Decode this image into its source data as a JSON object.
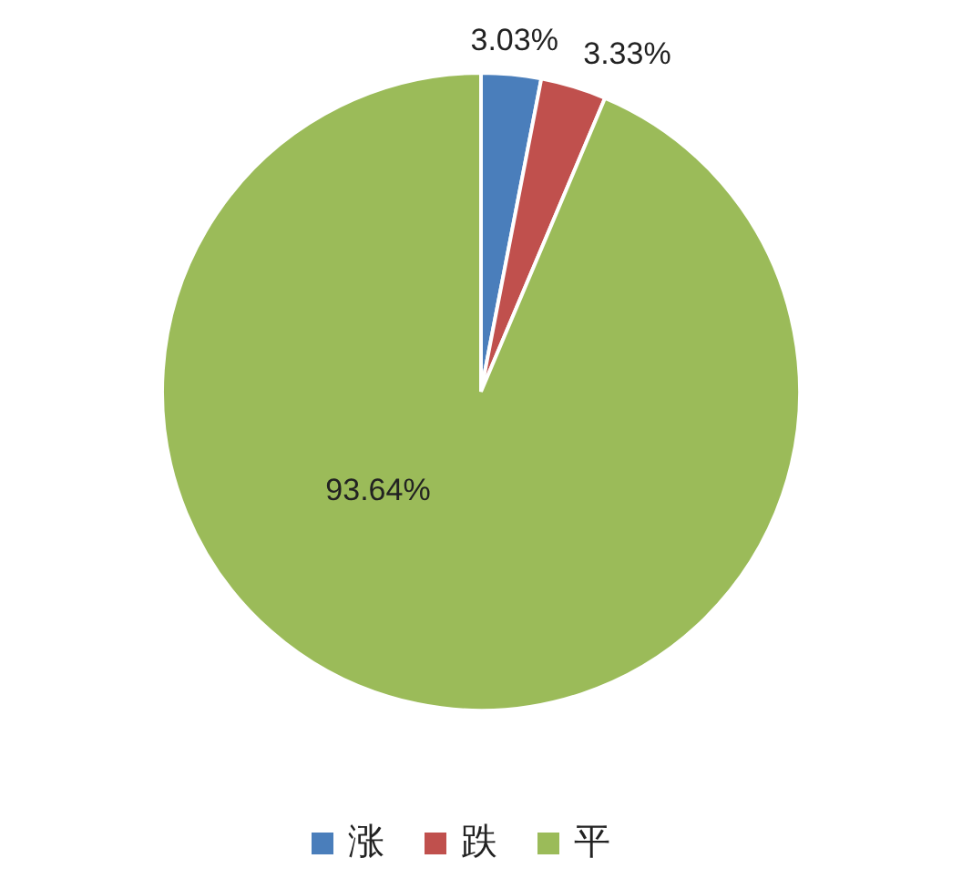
{
  "chart_data": {
    "type": "pie",
    "categories": [
      "涨",
      "跌",
      "平"
    ],
    "values": [
      3.03,
      3.33,
      93.64
    ],
    "colors": [
      "#4a7ebb",
      "#c0504d",
      "#9bbb59"
    ],
    "value_labels": [
      "3.03%",
      "3.33%",
      "93.64%"
    ],
    "legend": "bottom"
  }
}
